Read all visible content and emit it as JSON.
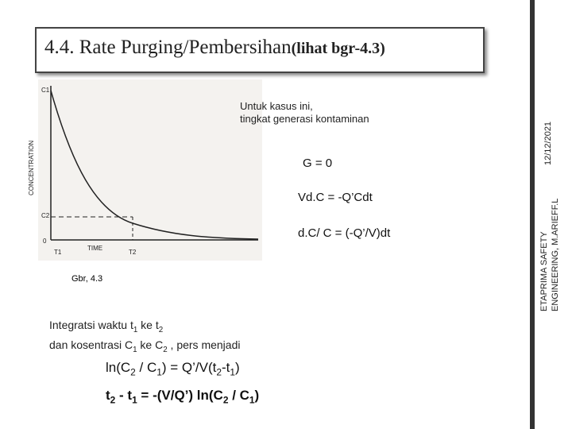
{
  "title": {
    "main": "4.4. Rate  Purging/Pembersihan",
    "note": "(lihat bgr-4.3)"
  },
  "side": {
    "date": "12/12/2021",
    "footer": [
      "ETAPRIMA SAFETY",
      "ENGINEERING, M.ARIEFF.L"
    ]
  },
  "figure": {
    "c1": "C1",
    "c2": "C2",
    "zero": "0",
    "t1": "T1",
    "t2": "T2",
    "x_label": "TIME",
    "y_label": "CONCENTRATION"
  },
  "notes": [
    "Untuk kasus ini,",
    "tingkat generasi kontaminan"
  ],
  "equations": [
    "G = 0",
    "Vd.C  = -Q’Cdt",
    "d.C/ C = (-Q’/V)dt"
  ],
  "caption": "Gbr, 4.3",
  "integration": [
    [
      "Integratsi waktu t",
      "1",
      "  ke    t",
      "2"
    ],
    [
      "dan kosentrasi C",
      "1",
      " ke C",
      "2",
      " , pers menjadi"
    ]
  ],
  "result1": [
    "ln(C",
    "2",
    " / C",
    "1",
    ") = Q’/V(t",
    "2",
    "-t",
    "1",
    ")"
  ],
  "result2": [
    "t",
    "2",
    " - t",
    "1",
    " = -(V/Q’) ln(C",
    "2",
    " / C",
    "1",
    ")"
  ]
}
